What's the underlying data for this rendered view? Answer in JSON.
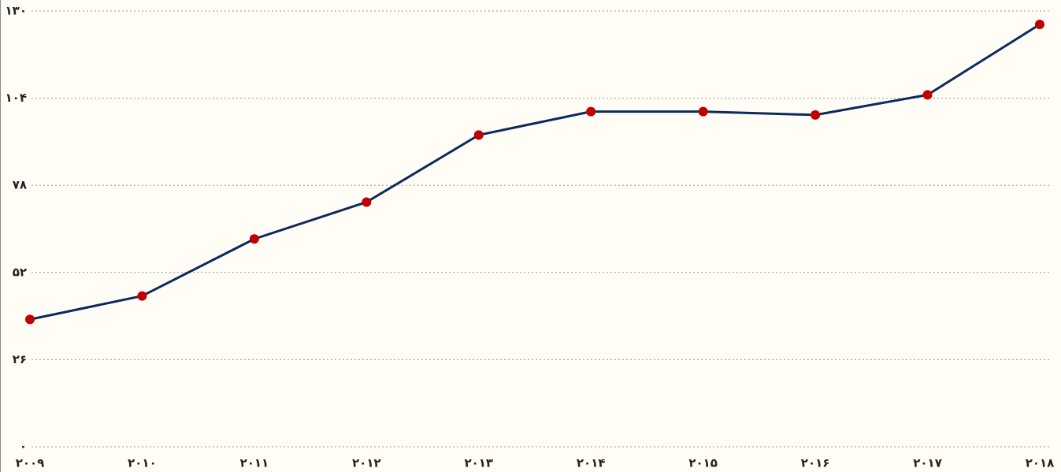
{
  "chart_data": {
    "type": "line",
    "categories": [
      "۲۰۰۹",
      "۲۰۱۰",
      "۲۰۱۱",
      "۲۰۱۲",
      "۲۰۱۳",
      "۲۰۱۴",
      "۲۰۱۵",
      "۲۰۱۶",
      "۲۰۱۷",
      "۲۰۱۸"
    ],
    "series": [
      {
        "color": "#0d2a5c",
        "marker_color": "#c00000",
        "values": [
          38,
          45,
          62,
          73,
          93,
          100,
          100,
          99,
          105,
          126
        ]
      }
    ],
    "ylim": [
      0,
      130
    ],
    "yticks": [
      {
        "value": 0,
        "label": "۰"
      },
      {
        "value": 26,
        "label": "۲۶"
      },
      {
        "value": 52,
        "label": "۵۲"
      },
      {
        "value": 78,
        "label": "۷۸"
      },
      {
        "value": 104,
        "label": "۱۰۴"
      },
      {
        "value": 130,
        "label": "۱۳۰"
      }
    ],
    "grid": true
  }
}
